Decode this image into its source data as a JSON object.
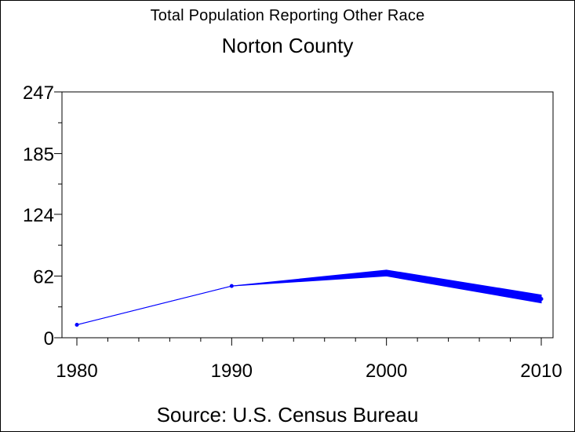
{
  "chart_data": {
    "type": "line",
    "title": "Total Population Reporting Other Race",
    "subtitle": "Norton County",
    "source": "Source: U.S. Census Bureau",
    "x": [
      1980,
      1990,
      2000,
      2010
    ],
    "x_tick_labels": [
      "1980",
      "1990",
      "2000",
      "2010"
    ],
    "y_tick_values": [
      0,
      62,
      124,
      185,
      247
    ],
    "y_tick_labels": [
      "0",
      "62",
      "124",
      "185",
      "247"
    ],
    "ylim": [
      0,
      247
    ],
    "xlim": [
      1980,
      2010
    ],
    "series": [
      {
        "values": [
          13,
          52,
          65,
          39
        ],
        "lower": [
          13,
          52,
          62,
          35
        ],
        "upper": [
          13,
          52,
          68,
          43
        ]
      }
    ],
    "grid": false,
    "colors": {
      "series": "#0000ff",
      "axis": "#000000"
    }
  }
}
